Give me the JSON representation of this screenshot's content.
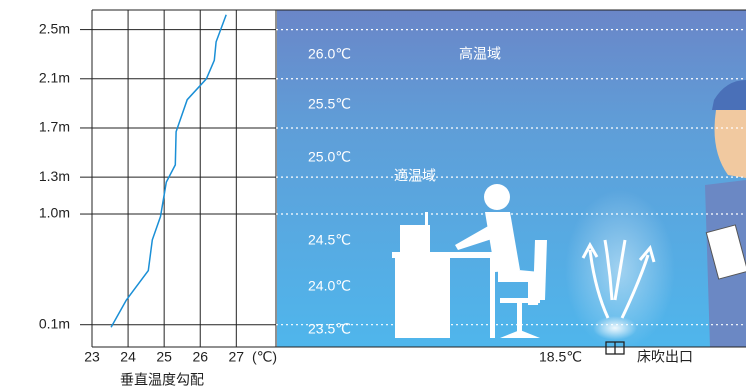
{
  "chart_data": {
    "type": "line",
    "x": [
      23.53,
      23.95,
      24.56,
      24.67,
      24.9,
      25.06,
      25.31,
      25.33,
      25.64,
      26.17,
      26.39,
      26.44,
      26.72
    ],
    "values": [
      0.08,
      0.3,
      0.54,
      0.79,
      0.98,
      1.26,
      1.4,
      1.67,
      1.93,
      2.1,
      2.25,
      2.4,
      2.62
    ],
    "color": "#1a8fd6",
    "xlim": [
      23,
      28.1
    ],
    "xticks": [
      23,
      24,
      25,
      26,
      27
    ],
    "ylim": [
      0,
      2.7
    ],
    "yticks": [
      {
        "value": 0.1,
        "label": "0.1m"
      },
      {
        "value": 1.0,
        "label": "1.0m"
      },
      {
        "value": 1.3,
        "label": "1.3m"
      },
      {
        "value": 1.7,
        "label": "1.7m"
      },
      {
        "value": 2.1,
        "label": "2.1m"
      },
      {
        "value": 2.5,
        "label": "2.5m"
      }
    ],
    "x_unit": "(℃)",
    "xlabel": "垂直温度勾配",
    "zone_temperatures": [
      "26.0℃",
      "25.5℃",
      "25.0℃",
      "24.5℃",
      "24.0℃",
      "23.5℃"
    ],
    "zone_high": "高温域",
    "zone_comfort": "適温域",
    "outlet_temperature": "18.5℃",
    "outlet_label": "床吹出口"
  }
}
